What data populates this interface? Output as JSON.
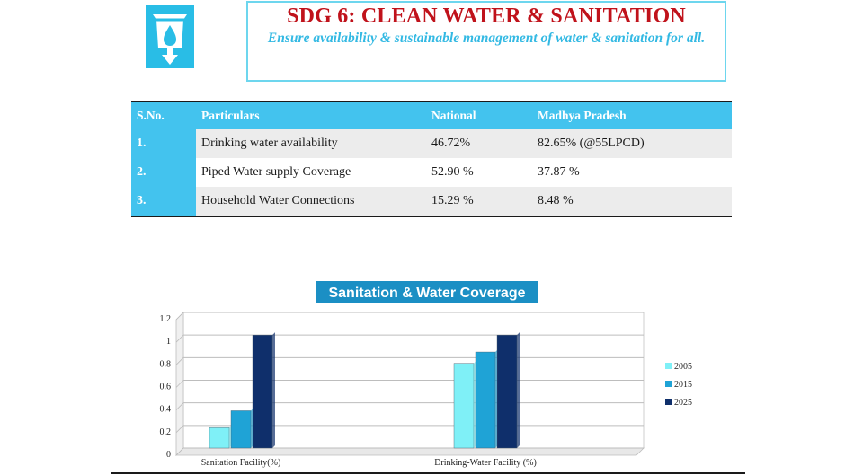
{
  "header": {
    "logo_icon": "water-tap-drop-icon",
    "title": "SDG 6: CLEAN WATER & SANITATION",
    "subtitle": "Ensure availability & sustainable management of water & sanitation for all."
  },
  "table": {
    "columns": [
      "S.No.",
      "Particulars",
      "National",
      "Madhya Pradesh"
    ],
    "rows": [
      [
        "1.",
        "Drinking water availability",
        "46.72%",
        "82.65% (@55LPCD)"
      ],
      [
        "2.",
        "Piped Water supply Coverage",
        "52.90 %",
        "37.87  %"
      ],
      [
        "3.",
        "Household Water Connections",
        "15.29  %",
        "8.48 %"
      ]
    ]
  },
  "chart_data": {
    "type": "bar",
    "title": "Sanitation & Water Coverage",
    "categories": [
      "Sanitation Facility(%)",
      "Drinking-Water Facility (%)"
    ],
    "series": [
      {
        "name": "2005",
        "values": [
          0.18,
          0.75
        ],
        "color": "#7ff0f7"
      },
      {
        "name": "2015",
        "values": [
          0.33,
          0.85
        ],
        "color": "#1fa3d6"
      },
      {
        "name": "2025",
        "values": [
          1.0,
          1.0
        ],
        "color": "#0f2f6b"
      }
    ],
    "ylim": [
      0,
      1.2
    ],
    "yticks": [
      "0",
      "0.2",
      "0.4",
      "0.6",
      "0.8",
      "1",
      "1.2"
    ],
    "grid": true,
    "legend": "right",
    "xlabel": "",
    "ylabel": ""
  },
  "colors": {
    "title_red": "#c0121b",
    "accent_cyan": "#43c3ee",
    "chart_title_bg": "#1b8fc4"
  }
}
